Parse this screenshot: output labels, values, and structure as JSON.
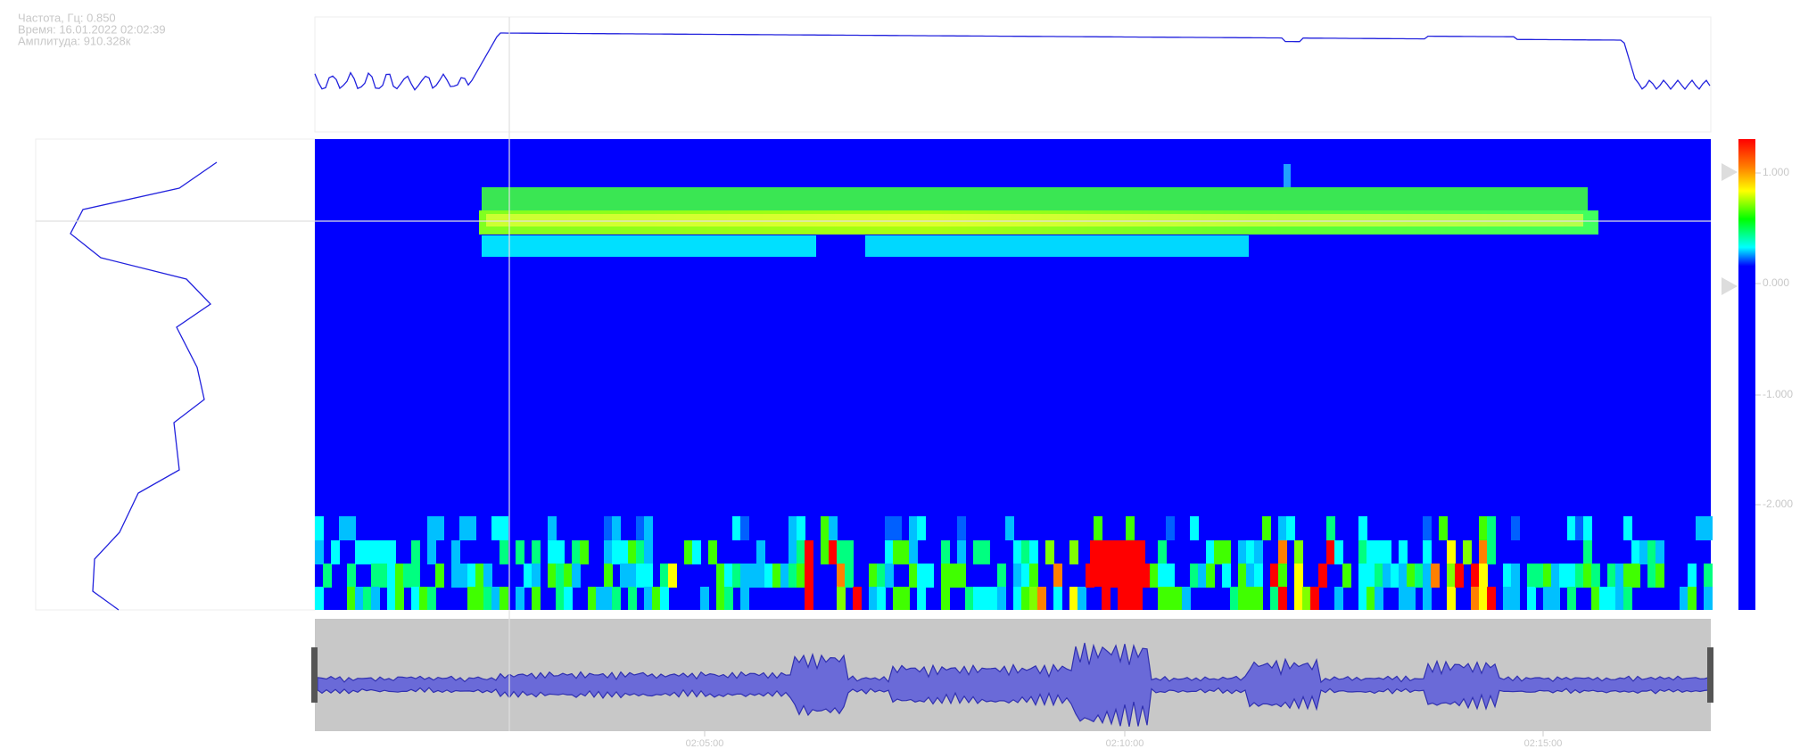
{
  "info": {
    "lines": [
      "Частота, Гц: 0.850",
      "Время: 16.01.2022 02:02:39",
      "Амплитуда: 910.328к"
    ]
  },
  "colorbar": {
    "ticks": [
      "1.000",
      "0.000",
      "-1.000",
      "-2.000"
    ]
  },
  "time_axis": {
    "ticks": [
      "02:05:00",
      "02:10:00",
      "02:15:00"
    ]
  }
}
